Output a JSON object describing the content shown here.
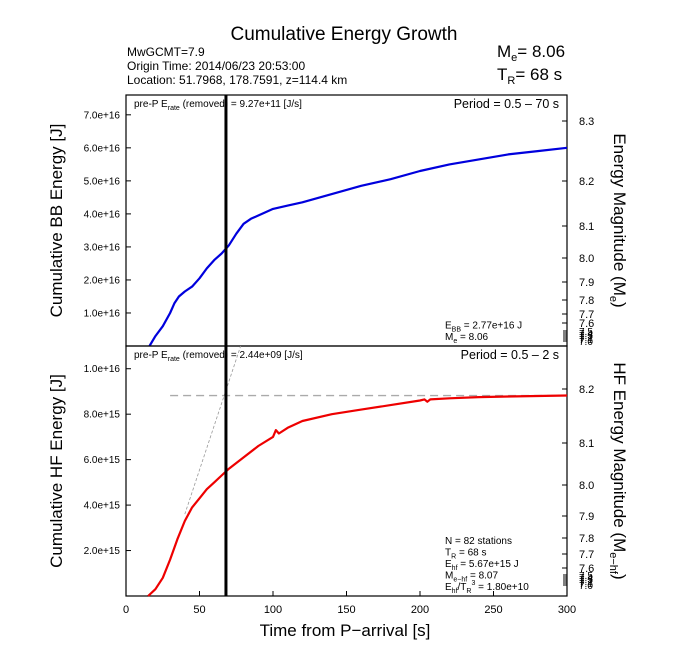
{
  "header": {
    "title": "Cumulative Energy Growth",
    "line1": "MwGCMT=7.9",
    "line2": "Origin Time: 2014/06/23 20:53:00",
    "line3": "Location: 51.7968, 178.7591, z=114.4 km",
    "me_label": "M",
    "me_sub": "e",
    "me_value": "= 8.06",
    "tr_label": "T",
    "tr_sub": "R",
    "tr_value": "= 68 s"
  },
  "chart_data": [
    {
      "type": "line",
      "panel": "top",
      "xlabel": "",
      "ylabel": "Cumulative BB Energy [J]",
      "y2label_main": "Energy Magnitude (M",
      "y2label_sub": "e",
      "y2label_close": ")",
      "xlim": [
        0,
        300
      ],
      "ylim": [
        0,
        7.6e+16
      ],
      "yticks": [
        1e+16,
        2e+16,
        3e+16,
        4e+16,
        5e+16,
        6e+16,
        7e+16
      ],
      "ytick_labels": [
        "1.0e+16",
        "2.0e+16",
        "3.0e+16",
        "4.0e+16",
        "5.0e+16",
        "6.0e+16",
        "7.0e+16"
      ],
      "y2ticks": [
        7.6,
        7.7,
        7.8,
        7.9,
        8.0,
        8.1,
        8.2,
        8.3
      ],
      "y2tick_labels": [
        "7.6",
        "7.7",
        "7.8",
        "7.9",
        "8.0",
        "8.1",
        "8.2",
        "8.3"
      ],
      "y2_extra_ticks": [
        7.5,
        7.4,
        7.3,
        7.2,
        7.1,
        7.0
      ],
      "y2_extra_labels": [
        "7.5",
        "7.4",
        "7.3",
        "7.2",
        "7.1",
        "7.0"
      ],
      "series": [
        {
          "color": "#0000dd",
          "x": [
            16,
            20,
            25,
            30,
            33,
            36,
            40,
            45,
            50,
            55,
            60,
            65,
            68,
            70,
            75,
            80,
            85,
            90,
            100,
            110,
            120,
            140,
            160,
            180,
            200,
            220,
            240,
            260,
            280,
            300
          ],
          "y": [
            0,
            3000000000000000.0,
            6000000000000000.0,
            1e+16,
            1.3e+16,
            1.5e+16,
            1.65e+16,
            1.8e+16,
            2.05e+16,
            2.35e+16,
            2.6e+16,
            2.8e+16,
            2.95e+16,
            3.05e+16,
            3.4e+16,
            3.7e+16,
            3.85e+16,
            3.95e+16,
            4.15e+16,
            4.25e+16,
            4.35e+16,
            4.6e+16,
            4.85e+16,
            5.05e+16,
            5.3e+16,
            5.5e+16,
            5.65e+16,
            5.8e+16,
            5.9e+16,
            6e+16
          ]
        }
      ],
      "vline_x": 68,
      "annotation_left": "pre-P E",
      "annotation_left_sub": "rate",
      "annotation_left_rest": " (removed) = 9.27e+11 [J/s]",
      "annotation_right": "Period = 0.5 – 70 s",
      "stats": [
        {
          "main": "E",
          "sub": "BB",
          "rest": " = 2.77e+16 J"
        },
        {
          "main": "M",
          "sub": "e",
          "rest": " = 8.06"
        }
      ]
    },
    {
      "type": "line",
      "panel": "bottom",
      "xlabel": "Time from P−arrival [s]",
      "ylabel": "Cumulative HF Energy [J]",
      "y2label_main": "HF Energy Magnitude (M",
      "y2label_sub": "e−hf",
      "y2label_close": ")",
      "xlim": [
        0,
        300
      ],
      "ylim": [
        0,
        1.1e+16
      ],
      "xticks": [
        0,
        50,
        100,
        150,
        200,
        250,
        300
      ],
      "xtick_labels": [
        "0",
        "50",
        "100",
        "150",
        "200",
        "250",
        "300"
      ],
      "yticks": [
        2000000000000000.0,
        4000000000000000.0,
        6000000000000000.0,
        8000000000000000.0,
        1e+16
      ],
      "ytick_labels": [
        "2.0e+15",
        "4.0e+15",
        "6.0e+15",
        "8.0e+15",
        "1.0e+16"
      ],
      "y2ticks": [
        7.6,
        7.7,
        7.8,
        7.9,
        8.0,
        8.1,
        8.2
      ],
      "y2tick_labels": [
        "7.6",
        "7.7",
        "7.8",
        "7.9",
        "8.0",
        "8.1",
        "8.2"
      ],
      "y2_extra_ticks": [
        7.5,
        7.4,
        7.3,
        7.2,
        7.1,
        7.0
      ],
      "y2_extra_labels": [
        "7.5",
        "7.4",
        "7.3",
        "7.2",
        "7.1",
        "7.0"
      ],
      "series": [
        {
          "color": "#ee0000",
          "x": [
            15,
            20,
            25,
            30,
            35,
            40,
            45,
            50,
            55,
            60,
            65,
            70,
            80,
            90,
            100,
            102,
            104,
            110,
            120,
            140,
            160,
            180,
            200,
            203,
            205,
            207,
            220,
            240,
            260,
            280,
            300
          ],
          "y": [
            0,
            300000000000000.0,
            800000000000000.0,
            1600000000000000.0,
            2500000000000000.0,
            3300000000000000.0,
            3900000000000000.0,
            4300000000000000.0,
            4700000000000000.0,
            5000000000000000.0,
            5300000000000000.0,
            5600000000000000.0,
            6100000000000000.0,
            6600000000000000.0,
            7000000000000000.0,
            7300000000000000.0,
            7150000000000000.0,
            7400000000000000.0,
            7700000000000000.0,
            8000000000000000.0,
            8200000000000000.0,
            8400000000000000.0,
            8600000000000000.0,
            8650000000000000.0,
            8550000000000000.0,
            8650000000000000.0,
            8700000000000000.0,
            8750000000000000.0,
            8780000000000000.0,
            8800000000000000.0,
            8820000000000000.0
          ]
        }
      ],
      "dashed_hline_y": 8820000000000000.0,
      "dashed_hline_x": [
        30,
        300
      ],
      "guide_line": {
        "x": [
          40,
          78
        ],
        "y": [
          3600000000000000.0,
          1.18e+16
        ]
      },
      "vline_x": 68,
      "annotation_left": "pre-P E",
      "annotation_left_sub": "rate",
      "annotation_left_rest": " (removed) = 2.44e+09 [J/s]",
      "annotation_right": "Period = 0.5 – 2 s",
      "stats": [
        {
          "main": "N = 82 stations",
          "sub": "",
          "rest": ""
        },
        {
          "main": "T",
          "sub": "R",
          "rest": " = 68  s"
        },
        {
          "main": "E",
          "sub": "hf",
          "rest": " = 5.67e+15 J"
        },
        {
          "main": "M",
          "sub": "e−hf",
          "rest": " = 8.07"
        },
        {
          "main": "E",
          "sub": "hf",
          "rest": "/T",
          "sub2": "R",
          "sup": "3",
          "rest2": " =  1.80e+10"
        }
      ]
    }
  ]
}
